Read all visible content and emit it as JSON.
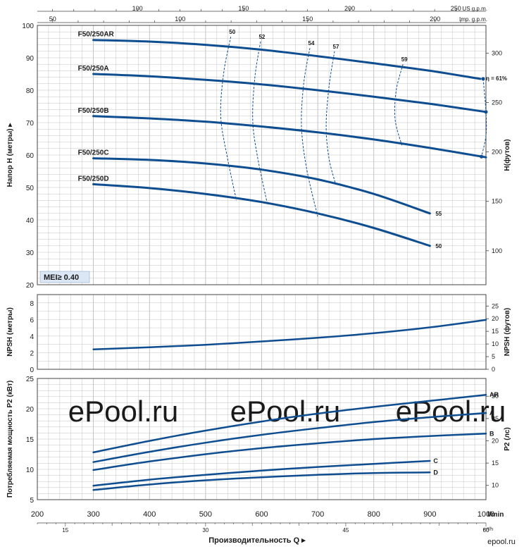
{
  "chart_data": {
    "type": "line",
    "colors": {
      "curve": "#0e4d8f",
      "grid": "#c4c4c4",
      "frame": "#444444",
      "text": "#1a1a1a",
      "mei_bg": "#dbe7f4",
      "watermark": "#d6d6d6"
    },
    "top_axes": {
      "usgpm": {
        "unit": "US g.p.m.",
        "ticks": [
          100,
          150,
          200,
          250
        ],
        "per_lmin": 0.264172
      },
      "impgpm": {
        "unit": "Imp. g.p.m.",
        "ticks": [
          50,
          100,
          150,
          200
        ],
        "per_lmin": 0.219969
      }
    },
    "x_lmin": {
      "ticks": [
        200,
        300,
        400,
        500,
        600,
        700,
        800,
        900,
        1000
      ],
      "unit": "l/min",
      "range": [
        200,
        1000
      ]
    },
    "x_m3h": {
      "ticks": [
        15,
        30,
        45,
        60
      ],
      "unit": "m³/h"
    },
    "xlabel": "Производительность Q",
    "head": {
      "ylabel": "Напор H (метры)",
      "ylabel_right": "H(футов)",
      "ylim": [
        20,
        100
      ],
      "left_ticks": [
        20,
        30,
        40,
        50,
        60,
        70,
        80,
        90,
        100
      ],
      "right_ticks": [
        100,
        150,
        200,
        250,
        300
      ],
      "m_per_ft": 0.3048,
      "mei_label": "MEI≥ 0.40",
      "series": [
        {
          "name": "F50/250AR",
          "x": [
            300,
            400,
            500,
            600,
            700,
            800,
            900,
            990
          ],
          "y": [
            95.5,
            95,
            94,
            92.5,
            90.5,
            88.3,
            86,
            83.5
          ]
        },
        {
          "name": "F50/250A",
          "x": [
            300,
            400,
            500,
            600,
            700,
            800,
            900,
            1000
          ],
          "y": [
            85,
            84.3,
            83.2,
            81.8,
            80,
            78,
            75.8,
            73.3
          ]
        },
        {
          "name": "F50/250B",
          "x": [
            300,
            400,
            500,
            600,
            700,
            800,
            900,
            1000
          ],
          "y": [
            72,
            71.3,
            70.3,
            68.8,
            67,
            64.8,
            62.2,
            59.3
          ]
        },
        {
          "name": "F50/250C",
          "x": [
            300,
            400,
            500,
            600,
            700,
            800,
            900
          ],
          "y": [
            59,
            58.5,
            57.4,
            55.5,
            52.5,
            48,
            42
          ]
        },
        {
          "name": "F50/250D",
          "x": [
            300,
            400,
            500,
            600,
            700,
            800,
            900
          ],
          "y": [
            51,
            49.8,
            48,
            45.5,
            42,
            37.5,
            32
          ]
        }
      ],
      "efficiency_curves": [
        {
          "label": "50",
          "x": [
            545,
            532,
            527,
            538,
            555
          ],
          "y": [
            96.5,
            85,
            72,
            60,
            46
          ]
        },
        {
          "label": "52",
          "x": [
            598,
            588,
            584,
            592,
            610
          ],
          "y": [
            95,
            84,
            71,
            60,
            45
          ]
        },
        {
          "label": "54",
          "x": [
            686,
            675,
            671,
            680,
            700
          ],
          "y": [
            93,
            82,
            69,
            56,
            41
          ]
        },
        {
          "label": "57",
          "x": [
            730,
            720,
            715,
            720,
            732
          ],
          "y": [
            92,
            81,
            69,
            59,
            51
          ]
        },
        {
          "label": "59",
          "x": [
            852,
            840,
            838,
            850
          ],
          "y": [
            88,
            80,
            71,
            63
          ]
        },
        {
          "label": "η = 61%",
          "x": [
            995,
            1000,
            1000,
            992
          ],
          "y": [
            83.5,
            73.3,
            66,
            59.5
          ]
        }
      ],
      "end_labels": [
        {
          "text": "55",
          "x": 905,
          "y": 42
        },
        {
          "text": "50",
          "x": 905,
          "y": 32
        }
      ]
    },
    "npsh": {
      "ylabel": "NPSH (метры)",
      "ylabel_right": "NPSH (футов)",
      "ylim": [
        0,
        9
      ],
      "left_ticks": [
        0,
        2,
        4,
        6,
        8
      ],
      "right_ticks": [
        0,
        5,
        10,
        15,
        20,
        25
      ],
      "m_per_ft": 0.3048,
      "series": [
        {
          "name": "NPSH",
          "x": [
            300,
            400,
            500,
            600,
            700,
            800,
            900,
            1000
          ],
          "y": [
            2.4,
            2.65,
            2.95,
            3.35,
            3.8,
            4.35,
            5.05,
            5.95
          ]
        }
      ]
    },
    "power": {
      "ylabel": "Потребляемая мощность P2 (кВт)",
      "ylabel_right": "P2 (лс)",
      "ylim": [
        5,
        25
      ],
      "left_ticks": [
        5,
        10,
        15,
        20,
        25
      ],
      "right_ticks": [
        10,
        15,
        20,
        25,
        30
      ],
      "kw_per_hp": 0.7355,
      "series": [
        {
          "name": "AR",
          "x": [
            300,
            400,
            500,
            600,
            700,
            800,
            900,
            1000
          ],
          "y": [
            12.8,
            14.7,
            16.4,
            17.9,
            19.2,
            20.3,
            21.3,
            22.3
          ]
        },
        {
          "name": "A",
          "x": [
            300,
            400,
            500,
            600,
            700,
            800,
            900,
            1000
          ],
          "y": [
            11.2,
            12.9,
            14.4,
            15.7,
            16.8,
            17.8,
            18.6,
            19.3
          ]
        },
        {
          "name": "B",
          "x": [
            300,
            400,
            500,
            600,
            700,
            800,
            900,
            1000
          ],
          "y": [
            9.9,
            11.3,
            12.5,
            13.5,
            14.3,
            15,
            15.5,
            15.9
          ]
        },
        {
          "name": "C",
          "x": [
            300,
            400,
            500,
            600,
            700,
            800,
            900
          ],
          "y": [
            7.3,
            8.3,
            9.1,
            9.8,
            10.4,
            10.9,
            11.4
          ]
        },
        {
          "name": "D",
          "x": [
            300,
            400,
            500,
            600,
            700,
            800,
            900
          ],
          "y": [
            6.6,
            7.5,
            8.2,
            8.7,
            9.1,
            9.4,
            9.5
          ]
        }
      ]
    },
    "watermark": {
      "text": "ePool.ru",
      "count": 3
    },
    "corner_logo": "epool.ru"
  }
}
